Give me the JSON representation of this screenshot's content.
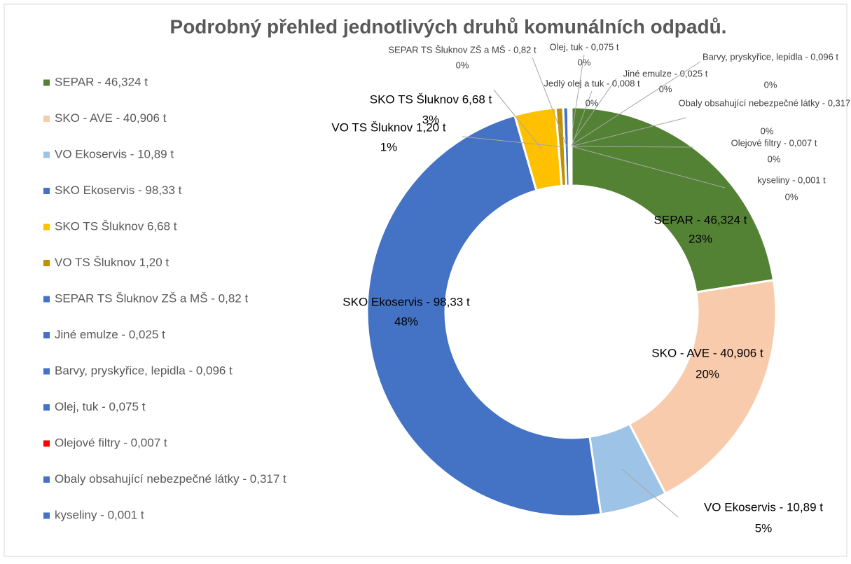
{
  "chart_data": {
    "type": "doughnut",
    "title": "Podrobný přehled jednotlivých druhů komunálních odpadů.",
    "categories": [
      "SEPAR - 46,324 t",
      "SKO - AVE - 40,906 t",
      "VO Ekoservis - 10,89 t",
      "SKO Ekoservis - 98,33 t",
      "SKO TS Šluknov 6,68 t",
      "VO TS Šluknov 1,20 t",
      "SEPAR TS Šluknov ZŠ a MŠ - 0,82 t",
      "Jiné emulze - 0,025 t",
      "Barvy, pryskyřice, lepidla - 0,096 t",
      "Olej, tuk - 0,075 t",
      "Olejové filtry - 0,007 t",
      "Obaly obsahující nebezpečné látky - 0,317 t",
      "kyseliny - 0,001 t",
      "Jedlý olej a tuk - 0,008 t"
    ],
    "values": [
      46.324,
      40.906,
      10.89,
      98.33,
      6.68,
      1.2,
      0.82,
      0.025,
      0.096,
      0.075,
      0.007,
      0.317,
      0.001,
      0.008
    ],
    "percent_labels": [
      "23%",
      "20%",
      "5%",
      "48%",
      "3%",
      "1%",
      "0%",
      "0%",
      "0%",
      "0%",
      "0%",
      "0%",
      "0%",
      "0%"
    ],
    "colors": [
      "#548235",
      "#f8cbad",
      "#9dc3e6",
      "#4472c4",
      "#ffc000",
      "#bf9000",
      "#4472c4",
      "#4472c4",
      "#4472c4",
      "#4472c4",
      "#ff0000",
      "#4472c4",
      "#4472c4",
      "#4472c4"
    ],
    "legend": "left"
  }
}
